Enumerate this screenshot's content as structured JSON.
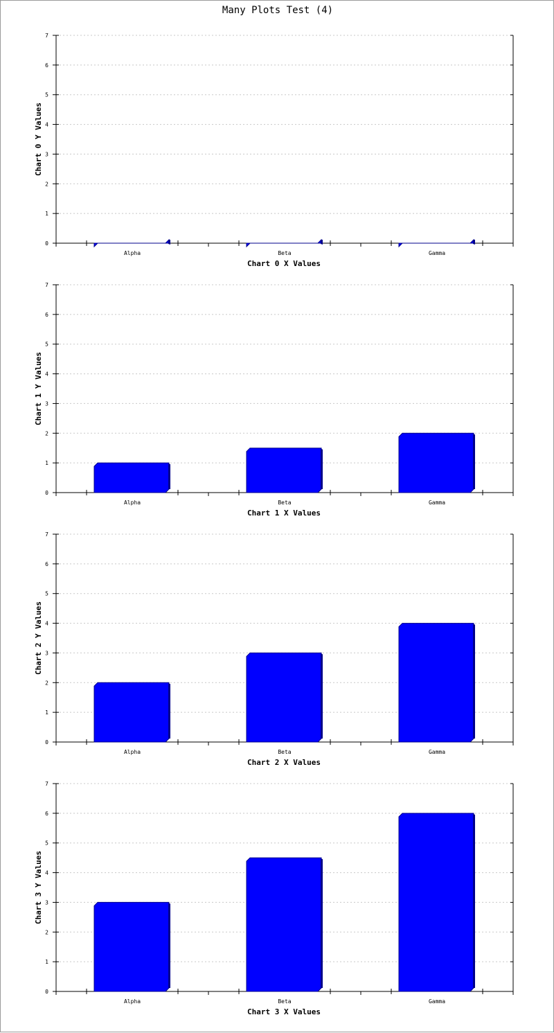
{
  "page": {
    "title": "Many Plots Test (4)"
  },
  "colors": {
    "bar": "#0000ff",
    "bar_dark": "#00008b",
    "grid": "#c8c8c8",
    "axis": "#000000"
  },
  "chart_data": [
    {
      "type": "bar",
      "categories": [
        "Alpha",
        "Beta",
        "Gamma"
      ],
      "values": [
        0,
        0,
        0
      ],
      "xlabel": "Chart 0 X Values",
      "ylabel": "Chart 0 Y Values",
      "ylim": [
        0,
        7
      ],
      "yticks": [
        "0",
        "1",
        "2",
        "3",
        "4",
        "5",
        "6",
        "7"
      ],
      "grid": true
    },
    {
      "type": "bar",
      "categories": [
        "Alpha",
        "Beta",
        "Gamma"
      ],
      "values": [
        1,
        1.5,
        2
      ],
      "xlabel": "Chart 1 X Values",
      "ylabel": "Chart 1 Y Values",
      "ylim": [
        0,
        7
      ],
      "yticks": [
        "0",
        "1",
        "2",
        "3",
        "4",
        "5",
        "6",
        "7"
      ],
      "grid": true
    },
    {
      "type": "bar",
      "categories": [
        "Alpha",
        "Beta",
        "Gamma"
      ],
      "values": [
        2,
        3,
        4
      ],
      "xlabel": "Chart 2 X Values",
      "ylabel": "Chart 2 Y Values",
      "ylim": [
        0,
        7
      ],
      "yticks": [
        "0",
        "1",
        "2",
        "3",
        "4",
        "5",
        "6",
        "7"
      ],
      "grid": true
    },
    {
      "type": "bar",
      "categories": [
        "Alpha",
        "Beta",
        "Gamma"
      ],
      "values": [
        3,
        4.5,
        6
      ],
      "xlabel": "Chart 3 X Values",
      "ylabel": "Chart 3 Y Values",
      "ylim": [
        0,
        7
      ],
      "yticks": [
        "0",
        "1",
        "2",
        "3",
        "4",
        "5",
        "6",
        "7"
      ],
      "grid": true
    }
  ]
}
